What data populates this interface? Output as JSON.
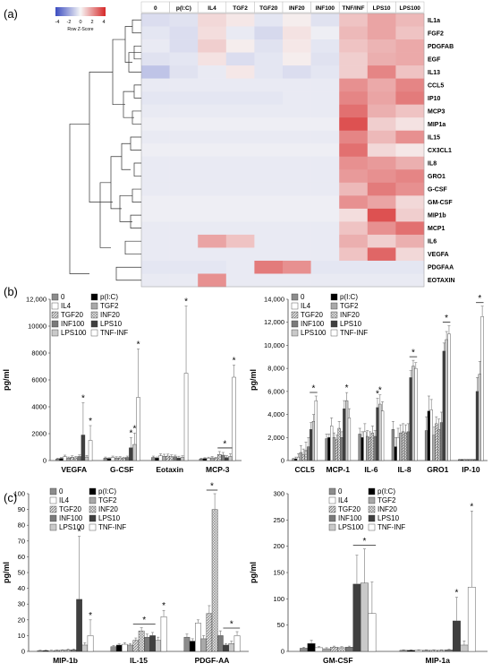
{
  "panel_labels": [
    "(a)",
    "(b)",
    "(c)"
  ],
  "legend_colors": {
    "0": "#7f7f7f",
    "p(I:C)": "#000000",
    "IL4": "#ffffff",
    "TGF2": "#a6a6a6",
    "TGF20": "#bfbfbf",
    "INF20": "#d9d9d9",
    "INF100": "#8c8c8c",
    "LPS10": "#404040",
    "LPS100": "#c8c8c8",
    "TNF-INF": "#ffffff"
  },
  "chart_data": [
    {
      "type": "heatmap",
      "panel": "(a)",
      "colorbar": {
        "label": "Row Z-Score",
        "ticks": [
          "-4",
          "-2",
          "0",
          "2",
          "4"
        ],
        "low_color": "#3b4cc0",
        "mid_color": "#f7f7f7",
        "high_color": "#d62828"
      },
      "columns": [
        "0",
        "p(I:C)",
        "IL4",
        "TGF2",
        "TGF20",
        "INF20",
        "INF100",
        "TNF/INF",
        "LPS10",
        "LPS100"
      ],
      "rows": [
        "IL1a",
        "FGF2",
        "PDGFAB",
        "EGF",
        "IL13",
        "CCL5",
        "IP10",
        "MCP3",
        "MIP1a",
        "IL15",
        "CX3CL1",
        "IL8",
        "GRO1",
        "G-CSF",
        "GM-CSF",
        "MIP1b",
        "MCP1",
        "IL6",
        "VEGFA",
        "PDGFAA",
        "EOTAXIN"
      ],
      "values": [
        [
          -0.6,
          -0.5,
          0.6,
          0.3,
          -0.4,
          0.2,
          -0.5,
          1.0,
          1.6,
          1.2
        ],
        [
          -0.4,
          -0.6,
          0.5,
          -0.3,
          -0.7,
          0.4,
          -0.2,
          1.2,
          1.6,
          1.0
        ],
        [
          -0.3,
          -0.6,
          0.8,
          0.2,
          -0.5,
          0.3,
          -0.4,
          1.0,
          1.3,
          1.5
        ],
        [
          -0.5,
          -0.4,
          0.4,
          -0.6,
          -0.4,
          0.2,
          -0.5,
          0.8,
          1.4,
          1.5
        ],
        [
          -1.2,
          -0.5,
          -0.3,
          0.3,
          -0.4,
          -0.6,
          -0.4,
          0.8,
          2.2,
          1.0
        ],
        [
          -0.3,
          -0.3,
          -0.3,
          -0.3,
          -0.3,
          -0.3,
          -0.3,
          2.0,
          1.5,
          2.2
        ],
        [
          -0.4,
          -0.4,
          -0.4,
          -0.4,
          -0.4,
          -0.3,
          -0.3,
          2.2,
          1.6,
          2.4
        ],
        [
          -0.3,
          -0.3,
          -0.3,
          -0.3,
          -0.3,
          -0.3,
          -0.3,
          2.6,
          1.4,
          1.0
        ],
        [
          -0.2,
          -0.2,
          -0.2,
          -0.2,
          -0.2,
          -0.2,
          -0.2,
          3.2,
          0.8,
          0.4
        ],
        [
          -0.3,
          -0.3,
          -0.3,
          -0.3,
          -0.3,
          -0.3,
          -0.3,
          2.2,
          1.2,
          2.0
        ],
        [
          -0.2,
          -0.2,
          -0.2,
          -0.2,
          -0.2,
          -0.2,
          -0.2,
          2.6,
          0.6,
          0.3
        ],
        [
          -0.3,
          -0.3,
          -0.3,
          -0.3,
          -0.3,
          -0.3,
          -0.3,
          2.0,
          1.8,
          1.4
        ],
        [
          -0.3,
          -0.3,
          -0.3,
          -0.3,
          -0.3,
          -0.3,
          -0.3,
          1.8,
          2.0,
          2.2
        ],
        [
          -0.3,
          -0.3,
          -0.3,
          -0.3,
          -0.3,
          -0.3,
          -0.3,
          1.2,
          2.4,
          2.0
        ],
        [
          -0.2,
          -0.2,
          -0.2,
          -0.2,
          -0.2,
          -0.2,
          -0.2,
          2.0,
          1.6,
          0.6
        ],
        [
          -0.2,
          -0.2,
          -0.2,
          -0.2,
          -0.2,
          -0.2,
          -0.2,
          0.5,
          3.2,
          0.8
        ],
        [
          -0.3,
          -0.3,
          -0.3,
          -0.3,
          -0.3,
          -0.3,
          -0.3,
          1.0,
          2.0,
          2.6
        ],
        [
          -0.3,
          -0.3,
          1.6,
          1.0,
          -0.3,
          -0.3,
          -0.3,
          1.4,
          0.8,
          1.4
        ],
        [
          -0.3,
          -0.3,
          -0.3,
          -0.3,
          -0.3,
          -0.3,
          -0.3,
          1.0,
          2.8,
          0.6
        ],
        [
          -0.4,
          -0.4,
          -0.4,
          -0.3,
          2.4,
          2.0,
          -0.4,
          -0.4,
          -0.4,
          -0.4
        ],
        [
          -0.3,
          -0.3,
          2.0,
          -0.3,
          -0.3,
          -0.3,
          -0.3,
          -0.3,
          -0.3,
          -0.3
        ]
      ],
      "dendrogram": true
    },
    {
      "type": "bar",
      "panel": "(b) left",
      "ylabel": "pg/ml",
      "ylim": [
        0,
        12000
      ],
      "yticks": [
        "0",
        "2000",
        "4000",
        "6000",
        "8000",
        "10000",
        "12,000"
      ],
      "categories": [
        "VEGFA",
        "G-CSF",
        "Eotaxin",
        "MCP-3"
      ],
      "legend": [
        "0",
        "p(I:C)",
        "IL4",
        "TGF2",
        "TGF20",
        "INF20",
        "INF100",
        "LPS10",
        "LPS100",
        "TNF-INF"
      ],
      "series": [
        {
          "name": "0",
          "values": [
            120,
            180,
            230,
            120
          ],
          "err": [
            60,
            80,
            100,
            60
          ]
        },
        {
          "name": "p(I:C)",
          "values": [
            160,
            150,
            180,
            150
          ],
          "err": [
            60,
            60,
            80,
            60
          ]
        },
        {
          "name": "IL4",
          "values": [
            280,
            230,
            350,
            170
          ],
          "err": [
            120,
            100,
            150,
            80
          ]
        },
        {
          "name": "TGF2",
          "values": [
            180,
            190,
            320,
            200
          ],
          "err": [
            80,
            90,
            150,
            100
          ]
        },
        {
          "name": "TGF20",
          "values": [
            250,
            200,
            330,
            160
          ],
          "err": [
            100,
            90,
            150,
            80
          ]
        },
        {
          "name": "INF20",
          "values": [
            200,
            170,
            290,
            450
          ],
          "err": [
            100,
            80,
            130,
            220
          ]
        },
        {
          "name": "INF100",
          "values": [
            300,
            230,
            280,
            400
          ],
          "err": [
            120,
            100,
            120,
            200
          ]
        },
        {
          "name": "LPS10",
          "values": [
            1900,
            950,
            190,
            220
          ],
          "err": [
            2400,
            750,
            130,
            150
          ]
        },
        {
          "name": "LPS100",
          "values": [
            260,
            1200,
            230,
            300
          ],
          "err": [
            120,
            850,
            120,
            200
          ]
        },
        {
          "name": "TNF-INF",
          "values": [
            1500,
            4700,
            6500,
            6200
          ],
          "err": [
            1100,
            3600,
            5000,
            900
          ]
        }
      ],
      "annotations": [
        {
          "category": "VEGFA",
          "series": "LPS10",
          "text": "*"
        },
        {
          "category": "VEGFA",
          "series": "TNF-INF",
          "text": "*"
        },
        {
          "category": "G-CSF",
          "series": "LPS10",
          "text": "*"
        },
        {
          "category": "G-CSF",
          "series": "LPS100",
          "text": "*"
        },
        {
          "category": "G-CSF",
          "series": "TNF-INF",
          "text": "*"
        },
        {
          "category": "Eotaxin",
          "series": "TNF-INF",
          "text": "*"
        },
        {
          "category": "MCP-3",
          "series": "INF20",
          "text": "*",
          "bracket_to": "LPS100"
        },
        {
          "category": "MCP-3",
          "series": "TNF-INF",
          "text": "*"
        }
      ]
    },
    {
      "type": "bar",
      "panel": "(b) right",
      "ylabel": "pg/ml",
      "ylim": [
        0,
        14000
      ],
      "yticks": [
        "0",
        "2,000",
        "4,000",
        "6,000",
        "8,000",
        "10,000",
        "12,000",
        "14,000"
      ],
      "categories": [
        "CCL5",
        "MCP-1",
        "IL-6",
        "IL-8",
        "GRO1",
        "IP-10"
      ],
      "legend": [
        "0",
        "p(I:C)",
        "IL4",
        "TGF2",
        "TGF20",
        "INF20",
        "INF100",
        "LPS10",
        "LPS100",
        "TNF-INF"
      ],
      "series": [
        {
          "name": "0",
          "values": [
            100,
            1900,
            2300,
            2700,
            2600,
            60
          ],
          "err": [
            100,
            400,
            500,
            700,
            1200,
            60
          ]
        },
        {
          "name": "p(I:C)",
          "values": [
            150,
            2000,
            2000,
            1200,
            4300,
            60
          ],
          "err": [
            150,
            300,
            500,
            800,
            1300,
            60
          ]
        },
        {
          "name": "IL4",
          "values": [
            300,
            3000,
            2500,
            2000,
            4400,
            60
          ],
          "err": [
            300,
            700,
            700,
            800,
            900,
            60
          ]
        },
        {
          "name": "TGF2",
          "values": [
            700,
            2000,
            2100,
            2400,
            2200,
            60
          ],
          "err": [
            600,
            400,
            500,
            700,
            700,
            60
          ]
        },
        {
          "name": "TGF20",
          "values": [
            500,
            1800,
            2000,
            2500,
            3200,
            60
          ],
          "err": [
            500,
            400,
            500,
            700,
            600,
            60
          ]
        },
        {
          "name": "INF20",
          "values": [
            900,
            2800,
            2400,
            2400,
            2700,
            60
          ],
          "err": [
            700,
            600,
            600,
            700,
            900,
            60
          ]
        },
        {
          "name": "INF100",
          "values": [
            1200,
            2000,
            2100,
            2500,
            3300,
            60
          ],
          "err": [
            800,
            500,
            500,
            700,
            900,
            60
          ]
        },
        {
          "name": "LPS10",
          "values": [
            2700,
            4500,
            4600,
            7200,
            9500,
            6000
          ],
          "err": [
            600,
            700,
            800,
            600,
            700,
            1200
          ]
        },
        {
          "name": "LPS100",
          "values": [
            3400,
            5200,
            4900,
            8200,
            10500,
            7500
          ],
          "err": [
            600,
            700,
            800,
            500,
            700,
            1100
          ]
        },
        {
          "name": "TNF-INF",
          "values": [
            5200,
            3700,
            4300,
            8000,
            11000,
            12500
          ],
          "err": [
            400,
            800,
            800,
            500,
            700,
            900
          ]
        }
      ],
      "annotations": [
        {
          "category": "CCL5",
          "series": "LPS10",
          "text": "*",
          "bracket_to": "TNF-INF"
        },
        {
          "category": "MCP-1",
          "series": "LPS100",
          "text": "*"
        },
        {
          "category": "IL-6",
          "series": "LPS10",
          "text": "*"
        },
        {
          "category": "IL-6",
          "series": "LPS100",
          "text": "*"
        },
        {
          "category": "IL-8",
          "series": "LPS10",
          "text": "*",
          "bracket_to": "TNF-INF"
        },
        {
          "category": "GRO1",
          "series": "LPS10",
          "text": "*",
          "bracket_to": "TNF-INF"
        },
        {
          "category": "IP-10",
          "series": "LPS10",
          "text": "*",
          "bracket_to": "TNF-INF"
        }
      ]
    },
    {
      "type": "bar",
      "panel": "(c) left",
      "ylabel": "pg/ml",
      "ylim": [
        0,
        100
      ],
      "yticks": [
        "0",
        "10",
        "20",
        "30",
        "40",
        "50",
        "60",
        "70",
        "80",
        "90",
        "100"
      ],
      "categories": [
        "MIP-1b",
        "IL-15",
        "PDGF-AA"
      ],
      "legend": [
        "0",
        "p(I:C)",
        "IL4",
        "TGF2",
        "TGF20",
        "INF20",
        "INF100",
        "LPS10",
        "LPS100",
        "TNF-INF"
      ],
      "series": [
        {
          "name": "0",
          "values": [
            0.5,
            3,
            9
          ],
          "err": [
            0.3,
            0.8,
            2
          ]
        },
        {
          "name": "p(I:C)",
          "values": [
            0.5,
            4,
            6.5
          ],
          "err": [
            0.3,
            0.8,
            1.5
          ]
        },
        {
          "name": "IL4",
          "values": [
            0.5,
            4.5,
            18
          ],
          "err": [
            0.3,
            1,
            2
          ]
        },
        {
          "name": "TGF2",
          "values": [
            0.6,
            4,
            8
          ],
          "err": [
            0.3,
            1,
            2
          ]
        },
        {
          "name": "TGF20",
          "values": [
            0.7,
            7,
            24
          ],
          "err": [
            0.3,
            1.5,
            5
          ]
        },
        {
          "name": "INF20",
          "values": [
            1,
            13,
            90
          ],
          "err": [
            0.5,
            2,
            16
          ]
        },
        {
          "name": "INF100",
          "values": [
            1,
            9,
            10
          ],
          "err": [
            0.5,
            2,
            3
          ]
        },
        {
          "name": "LPS10",
          "values": [
            33,
            10,
            4
          ],
          "err": [
            40,
            2,
            1
          ]
        },
        {
          "name": "LPS100",
          "values": [
            4,
            7,
            5
          ],
          "err": [
            1.5,
            2,
            1.5
          ]
        },
        {
          "name": "TNF-INF",
          "values": [
            10,
            22,
            10
          ],
          "err": [
            10,
            4,
            2.5
          ]
        }
      ],
      "annotations": [
        {
          "category": "MIP-1b",
          "series": "LPS10",
          "text": "*"
        },
        {
          "category": "MIP-1b",
          "series": "TNF-INF",
          "text": "*"
        },
        {
          "category": "IL-15",
          "series": "TGF20",
          "text": "*",
          "bracket_to": "LPS10"
        },
        {
          "category": "IL-15",
          "series": "TNF-INF",
          "text": "*"
        },
        {
          "category": "PDGF-AA",
          "series": "TGF20",
          "text": "*",
          "bracket_to": "INF20"
        },
        {
          "category": "PDGF-AA",
          "series": "LPS10",
          "text": "*",
          "bracket_to": "TNF-INF"
        }
      ]
    },
    {
      "type": "bar",
      "panel": "(c) right",
      "ylabel": "pg/ml",
      "ylim": [
        0,
        300
      ],
      "yticks": [
        "0",
        "50",
        "100",
        "150",
        "200",
        "250",
        "300"
      ],
      "categories": [
        "GM-CSF",
        "MIP-1a"
      ],
      "legend": [
        "0",
        "p(I:C)",
        "IL4",
        "TGF2",
        "TGF20",
        "INF20",
        "INF100",
        "LPS10",
        "LPS100",
        "TNF-INF"
      ],
      "series": [
        {
          "name": "0",
          "values": [
            6,
            2
          ],
          "err": [
            2,
            1
          ]
        },
        {
          "name": "p(I:C)",
          "values": [
            15,
            2
          ],
          "err": [
            6,
            1
          ]
        },
        {
          "name": "IL4",
          "values": [
            7,
            2
          ],
          "err": [
            2,
            1
          ]
        },
        {
          "name": "TGF2",
          "values": [
            5,
            2
          ],
          "err": [
            2,
            1
          ]
        },
        {
          "name": "TGF20",
          "values": [
            8,
            2
          ],
          "err": [
            2,
            1
          ]
        },
        {
          "name": "INF20",
          "values": [
            7,
            2
          ],
          "err": [
            2,
            1
          ]
        },
        {
          "name": "INF100",
          "values": [
            8,
            3
          ],
          "err": [
            2,
            1
          ]
        },
        {
          "name": "LPS10",
          "values": [
            128,
            58
          ],
          "err": [
            55,
            45
          ]
        },
        {
          "name": "LPS100",
          "values": [
            130,
            12
          ],
          "err": [
            65,
            8
          ]
        },
        {
          "name": "TNF-INF",
          "values": [
            72,
            122
          ],
          "err": [
            60,
            145
          ]
        }
      ],
      "annotations": [
        {
          "category": "GM-CSF",
          "series": "LPS10",
          "text": "*",
          "bracket_to": "TNF-INF"
        },
        {
          "category": "MIP-1a",
          "series": "LPS10",
          "text": "*"
        },
        {
          "category": "MIP-1a",
          "series": "TNF-INF",
          "text": "*"
        }
      ]
    }
  ]
}
